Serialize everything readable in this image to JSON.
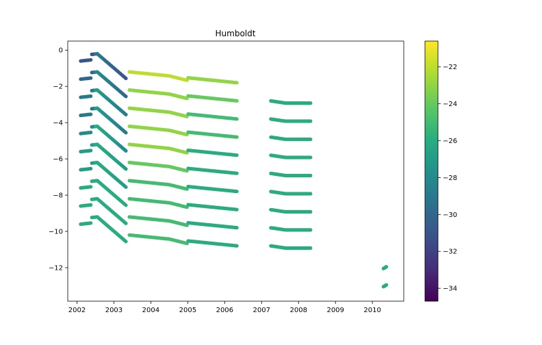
{
  "chart_data": {
    "type": "scatter",
    "title": "Humboldt",
    "xlabel": "",
    "ylabel": "",
    "xlim": [
      2001.75,
      2010.85
    ],
    "ylim": [
      -13.85,
      0.5
    ],
    "x_ticks": [
      2002,
      2003,
      2004,
      2005,
      2006,
      2007,
      2008,
      2009,
      2010
    ],
    "y_ticks": [
      0,
      -2,
      -4,
      -6,
      -8,
      -10,
      -12
    ],
    "grid": false,
    "colormap": "viridis",
    "colorbar": {
      "min": -34.7,
      "max": -20.6,
      "ticks": [
        -22,
        -24,
        -26,
        -28,
        -30,
        -32,
        -34
      ]
    },
    "offset_step": -1,
    "series": [
      {
        "base": -0.6,
        "color_value": [
          -31,
          -29,
          -22,
          -23
        ]
      },
      {
        "base": -1.6,
        "color_value": [
          -30,
          -28,
          -23,
          -24
        ]
      },
      {
        "base": -2.6,
        "color_value": [
          -29,
          -27,
          -23,
          -25
        ]
      },
      {
        "base": -3.6,
        "color_value": [
          -29,
          -27,
          -23,
          -25
        ]
      },
      {
        "base": -4.6,
        "color_value": [
          -28,
          -26,
          -23,
          -26
        ]
      },
      {
        "base": -5.6,
        "color_value": [
          -27,
          -26,
          -24,
          -26
        ]
      },
      {
        "base": -6.6,
        "color_value": [
          -27,
          -26,
          -25,
          -26
        ]
      },
      {
        "base": -7.6,
        "color_value": [
          -26,
          -26,
          -25,
          -26
        ]
      },
      {
        "base": -8.6,
        "color_value": [
          -26,
          -26,
          -25,
          -26
        ]
      },
      {
        "base": -9.6,
        "color_value": [
          -26,
          -26,
          -25,
          -26
        ]
      }
    ],
    "segment_2007": {
      "start": -2.8,
      "rows": 9,
      "color_value": -26
    },
    "segment_2010": [
      {
        "x": [
          2010.3,
          2010.38
        ],
        "y": [
          -12.05,
          -11.95
        ],
        "color_value": -26
      },
      {
        "x": [
          2010.3,
          2010.38
        ],
        "y": [
          -13.05,
          -12.95
        ],
        "color_value": -26
      }
    ]
  }
}
